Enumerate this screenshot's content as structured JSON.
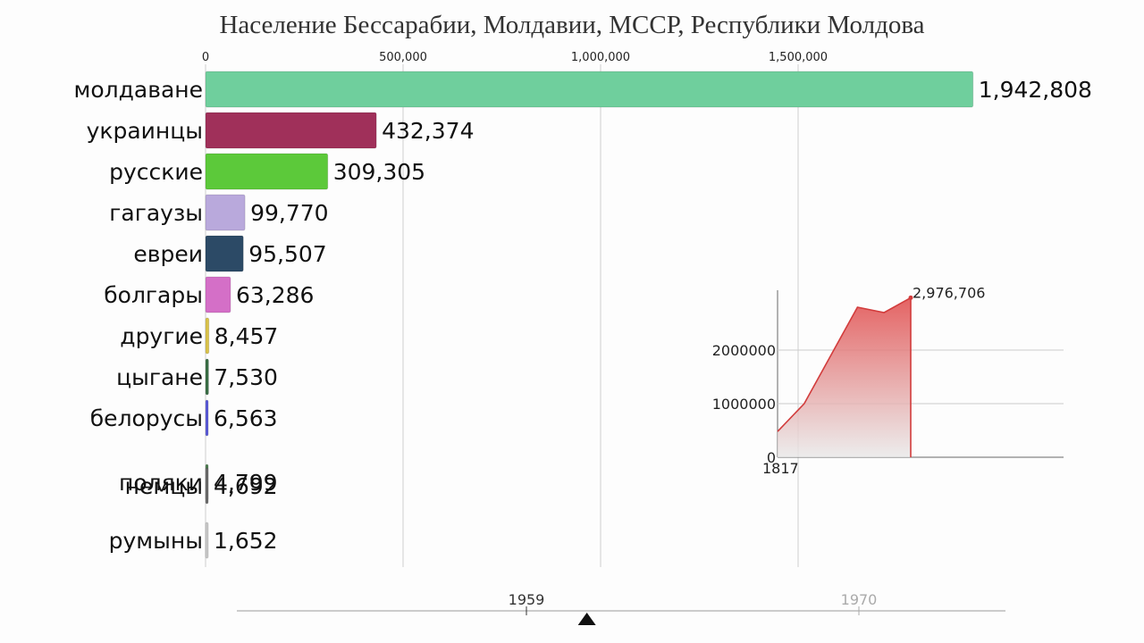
{
  "title": "Население Бессарабии, Молдавии, МССР, Республики Молдова",
  "chart_data": [
    {
      "type": "bar",
      "orientation": "horizontal",
      "title": "Население Бессарабии, Молдавии, МССР, Республики Молдова",
      "x_ticks": [
        "0",
        "500,000",
        "1,000,000",
        "1,500,000"
      ],
      "xlim": [
        0,
        1950000
      ],
      "grid": true,
      "categories": [
        "молдаване",
        "украинцы",
        "русские",
        "гагаузы",
        "евреи",
        "болгары",
        "другие",
        "цыгане",
        "белорусы",
        "поляки",
        "немцы",
        "румыны"
      ],
      "values": [
        1942808,
        432374,
        309305,
        99770,
        95507,
        63286,
        8457,
        7530,
        6563,
        4799,
        4692,
        1652
      ],
      "value_labels": [
        "1,942,808",
        "432,374",
        "309,305",
        "99,770",
        "95,507",
        "63,286",
        "8,457",
        "7,530",
        "6,563",
        "4,799",
        "4,692",
        "1,652"
      ],
      "colors": [
        "#6fcf9d",
        "#a0305a",
        "#5cc93a",
        "#b9a9dc",
        "#2c4a66",
        "#d46fc7",
        "#d9c24a",
        "#3a6e45",
        "#5a5ad8",
        "#4d7d50",
        "#6a6a6a",
        "#c9c9c9"
      ]
    },
    {
      "type": "area",
      "x_start_label": "1817",
      "y_ticks": [
        "0",
        "1000000",
        "2000000"
      ],
      "ylim": [
        0,
        3000000
      ],
      "grid": true,
      "values": [
        480000,
        1000000,
        1900000,
        2800000,
        2700000,
        2976706
      ],
      "end_label": "2,976,706",
      "color": "#d94a4a"
    }
  ],
  "timeline": {
    "year_1": "1959",
    "year_2": "1970",
    "position_year": 1961
  }
}
